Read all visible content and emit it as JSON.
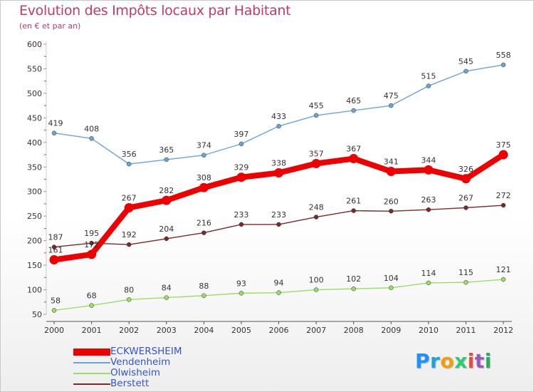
{
  "title": "Evolution des Impôts locaux par Habitant",
  "subtitle": "(en € et par an)",
  "logo": {
    "text": "Proxiti",
    "letters": [
      {
        "ch": "P",
        "color": "#1e90ff"
      },
      {
        "ch": "r",
        "color": "#1aa3d9"
      },
      {
        "ch": "o",
        "color": "#f39c12"
      },
      {
        "ch": "x",
        "color": "#2ecc71"
      },
      {
        "ch": "i",
        "color": "#e74c3c"
      },
      {
        "ch": "t",
        "color": "#9b59b6"
      },
      {
        "ch": "i",
        "color": "#27ae60"
      }
    ]
  },
  "chart_data": {
    "type": "line",
    "x": [
      "2000",
      "2001",
      "2002",
      "2003",
      "2004",
      "2005",
      "2006",
      "2007",
      "2008",
      "2009",
      "2010",
      "2011",
      "2012"
    ],
    "ylim": [
      50,
      600
    ],
    "yticks": [
      50,
      100,
      150,
      200,
      250,
      300,
      350,
      400,
      450,
      500,
      550,
      600
    ],
    "grid": false,
    "legend_position": "bottom-left",
    "series": [
      {
        "name": "ECKWERSHEIM",
        "color": "#ee0000",
        "emphasis": true,
        "values": [
          161,
          172,
          267,
          282,
          308,
          329,
          338,
          357,
          367,
          341,
          344,
          326,
          375
        ]
      },
      {
        "name": "Vendenheim",
        "color": "#6aa4d6",
        "emphasis": false,
        "values": [
          419,
          408,
          356,
          365,
          374,
          397,
          433,
          455,
          465,
          475,
          515,
          545,
          558
        ]
      },
      {
        "name": "Olwisheim",
        "color": "#99dd66",
        "emphasis": false,
        "values": [
          58,
          68,
          80,
          84,
          88,
          93,
          94,
          100,
          102,
          104,
          114,
          115,
          121
        ]
      },
      {
        "name": "Berstett",
        "color": "#7a2a2a",
        "emphasis": false,
        "values": [
          187,
          195,
          192,
          204,
          216,
          233,
          233,
          248,
          261,
          260,
          263,
          267,
          272
        ]
      }
    ]
  }
}
